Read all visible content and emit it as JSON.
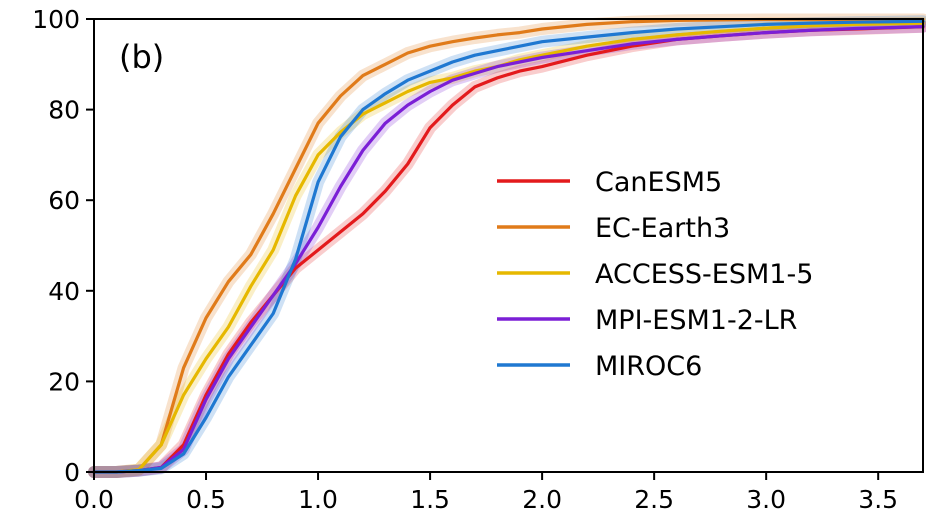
{
  "chart_data": {
    "type": "line",
    "panel_label": "(b)",
    "title": "",
    "xlabel": "",
    "ylabel": "",
    "xlim": [
      0.0,
      3.7
    ],
    "ylim": [
      0,
      100
    ],
    "x_ticks": [
      "0.0",
      "0.5",
      "1.0",
      "1.5",
      "2.0",
      "2.5",
      "3.0",
      "3.5"
    ],
    "y_ticks": [
      "0",
      "20",
      "40",
      "60",
      "80",
      "100"
    ],
    "grid": false,
    "legend_position": "center-right",
    "x": [
      0.0,
      0.1,
      0.2,
      0.3,
      0.4,
      0.5,
      0.6,
      0.7,
      0.8,
      0.9,
      1.0,
      1.1,
      1.2,
      1.3,
      1.4,
      1.5,
      1.6,
      1.7,
      1.8,
      1.9,
      2.0,
      2.2,
      2.4,
      2.6,
      2.8,
      3.0,
      3.2,
      3.4,
      3.7
    ],
    "series": [
      {
        "name": "CanESM5",
        "color": "#e31a1c",
        "values": [
          0,
          0,
          0.3,
          1.0,
          6,
          17,
          26,
          33,
          39,
          45,
          49,
          53,
          57,
          62,
          68,
          76,
          81,
          85,
          87,
          88.5,
          89.5,
          92,
          94,
          95.5,
          96.3,
          97,
          97.5,
          97.8,
          98.3
        ]
      },
      {
        "name": "EC-Earth3",
        "color": "#e07b1a",
        "values": [
          0,
          0,
          0.5,
          6,
          23,
          34,
          42,
          48,
          57,
          67,
          77,
          83,
          87.5,
          90,
          92.5,
          94,
          95,
          95.8,
          96.5,
          97,
          97.8,
          98.8,
          99.4,
          99.7,
          99.8,
          99.9,
          99.9,
          99.9,
          99.9
        ]
      },
      {
        "name": "ACCESS-ESM1-5",
        "color": "#e6b800",
        "values": [
          0,
          0,
          0.5,
          6,
          17,
          25,
          32,
          41,
          49,
          61,
          70,
          75,
          79,
          81.5,
          84,
          86,
          87,
          88.5,
          89.5,
          91,
          92,
          94,
          95.5,
          96.5,
          97.3,
          98,
          98.5,
          98.8,
          99.1
        ]
      },
      {
        "name": "MPI-ESM1-2-LR",
        "color": "#7b1fd6",
        "values": [
          0,
          0,
          0.3,
          1.0,
          5,
          16,
          25,
          32,
          39,
          46,
          54,
          63,
          71,
          77,
          81,
          84,
          86.5,
          88,
          89.5,
          90.5,
          91.5,
          93,
          94.5,
          95.5,
          96.3,
          97,
          97.5,
          97.9,
          98.3
        ]
      },
      {
        "name": "MIROC6",
        "color": "#1f78d1",
        "values": [
          0,
          0,
          0.3,
          0.8,
          4,
          12,
          21,
          28,
          35,
          47,
          64,
          74,
          80,
          83.5,
          86.5,
          88.5,
          90.5,
          92,
          93,
          94,
          95,
          96,
          97,
          97.8,
          98.3,
          98.8,
          99.1,
          99.3,
          99.5
        ]
      }
    ]
  }
}
